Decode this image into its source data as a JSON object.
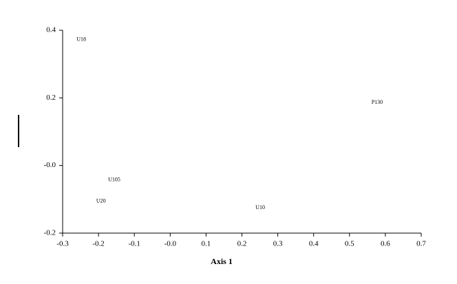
{
  "chart_data": {
    "type": "scatter",
    "x_label": "Axis 1",
    "x": [
      -0.248,
      0.577,
      -0.156,
      -0.193,
      0.251
    ],
    "values": [
      0.372,
      0.186,
      -0.043,
      -0.106,
      -0.125
    ],
    "point_labels": [
      "U18",
      "P130",
      "U105",
      "U20",
      "U10"
    ],
    "color": "#000000",
    "xlim": [
      -0.3,
      0.7
    ],
    "xticks": [
      -0.3,
      -0.2,
      -0.1,
      {
        "value": 0,
        "label": "-0.0"
      },
      0.1,
      0.2,
      0.3,
      0.4,
      0.5,
      0.6,
      0.7
    ],
    "ylim": [
      -0.2,
      0.4
    ],
    "yticks": [
      {
        "value": -0.2,
        "label": "-0.2"
      },
      {
        "value": 0,
        "label": "-0.0"
      },
      0.2,
      0.4
    ],
    "grid": false
  }
}
